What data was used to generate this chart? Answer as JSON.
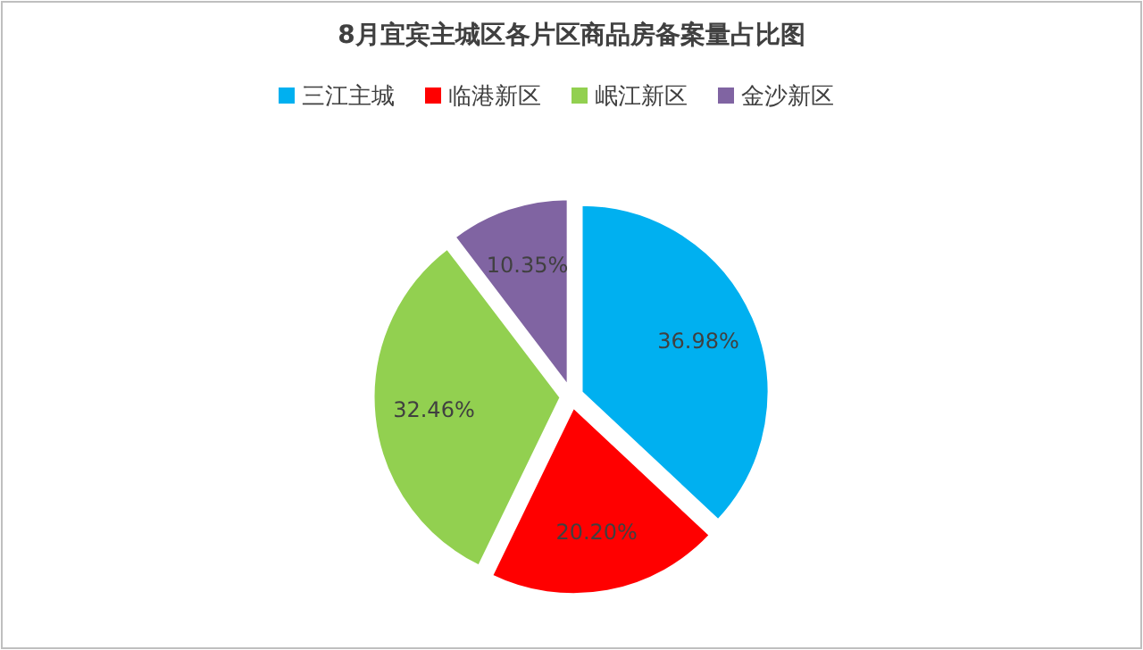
{
  "chart_data": {
    "type": "pie",
    "title": "8月宜宾主城区各片区商品房备案量占比图",
    "categories": [
      "三江主城",
      "临港新区",
      "岷江新区",
      "金沙新区"
    ],
    "values": [
      36.98,
      20.2,
      32.46,
      10.35
    ],
    "value_labels": [
      "36.98%",
      "20.20%",
      "32.46%",
      "10.35%"
    ],
    "colors": [
      "#00b0f0",
      "#ff0000",
      "#92d050",
      "#8064a2"
    ],
    "legend": "top"
  }
}
